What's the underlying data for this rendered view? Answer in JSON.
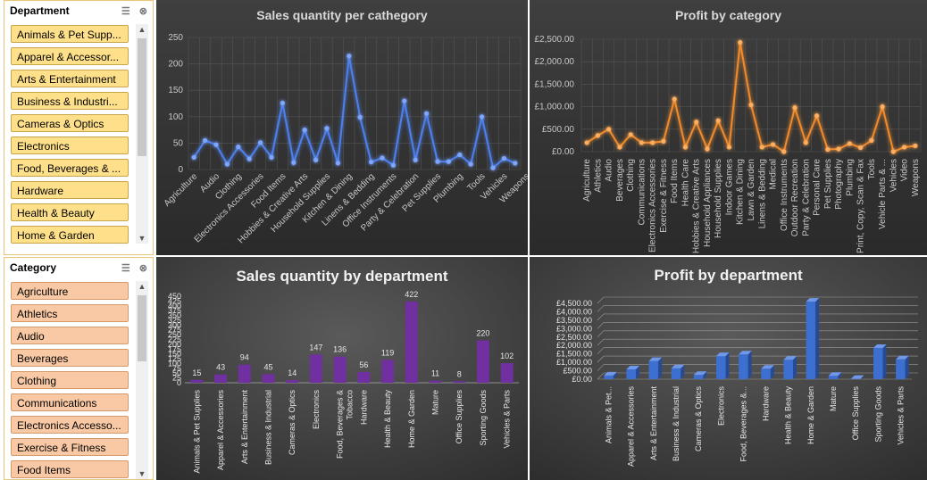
{
  "slicers": {
    "department": {
      "title": "Department",
      "items": [
        "Animals & Pet Supp...",
        "Apparel & Accessor...",
        "Arts & Entertainment",
        "Business & Industri...",
        "Cameras & Optics",
        "Electronics",
        "Food, Beverages & ...",
        "Hardware",
        "Health & Beauty",
        "Home & Garden"
      ]
    },
    "category": {
      "title": "Category",
      "items": [
        "Agriculture",
        "Athletics",
        "Audio",
        "Beverages",
        "Clothing",
        "Communications",
        "Electronics Accesso...",
        "Exercise & Fitness",
        "Food Items"
      ]
    }
  },
  "icons": {
    "multiselect": "multi-select-icon",
    "clear": "clear-filter-icon",
    "up": "scroll-up-icon",
    "down": "scroll-down-icon"
  },
  "colors": {
    "blue_series": "#4d80ee",
    "orange_series": "#f08a2a",
    "purple_bar": "#7030a0",
    "blue_bar": "#3d6fd0"
  },
  "chart_data": [
    {
      "type": "line",
      "title": "Sales quantity per cathegory",
      "ylim": [
        0,
        250
      ],
      "yticks": [
        0,
        50,
        100,
        150,
        200,
        250
      ],
      "tick_labels": [
        "Agriculture",
        "Audio",
        "Clothing",
        "Electronics Accessories",
        "Food Items",
        "Hobbies & Creative Arts",
        "Household Supplies",
        "Kitchen & Dining",
        "Linens & Bedding",
        "Office Instruments",
        "Party & Celebration",
        "Pet Supplies",
        "Plumbing",
        "Tools",
        "Vehicles",
        "Weapons"
      ],
      "values": [
        23,
        55,
        47,
        10,
        43,
        20,
        51,
        23,
        126,
        13,
        75,
        18,
        78,
        12,
        215,
        99,
        14,
        22,
        8,
        130,
        18,
        106,
        15,
        15,
        28,
        10,
        100,
        3,
        21,
        12
      ]
    },
    {
      "type": "line",
      "title": "Profit by category",
      "ylim": [
        0,
        2500
      ],
      "ytick_labels": [
        "£0.00",
        "£500.00",
        "£1,000.00",
        "£1,500.00",
        "£2,000.00",
        "£2,500.00"
      ],
      "categories": [
        "Agriculture",
        "Athletics",
        "Audio",
        "Beverages",
        "Clothing",
        "Communications",
        "Electronics Accessories",
        "Exercise & Fitness",
        "Food Items",
        "Health Care",
        "Hobbies & Creative Arts",
        "Household Appliances",
        "Household Supplies",
        "Indoor Games",
        "Kitchen & Dining",
        "Lawn & Garden",
        "Linens & Bedding",
        "Medical",
        "Office Instruments",
        "Outdoor Recreation",
        "Party & Celebration",
        "Personal Care",
        "Pet Supplies",
        "Photography",
        "Plumbing",
        "Print, Copy, Scan & Fax",
        "Tools",
        "Vehicle Parts & ...",
        "Vehicles",
        "Video",
        "Weapons"
      ],
      "values": [
        200,
        360,
        500,
        100,
        380,
        200,
        200,
        230,
        1170,
        100,
        660,
        60,
        690,
        100,
        2430,
        1040,
        100,
        160,
        0,
        980,
        200,
        800,
        50,
        60,
        180,
        90,
        250,
        1000,
        0,
        100,
        130
      ]
    },
    {
      "type": "bar",
      "title": "Sales quantity by department",
      "ylim": [
        0,
        450
      ],
      "yticks": [
        0,
        25,
        50,
        75,
        100,
        125,
        150,
        175,
        200,
        225,
        250,
        275,
        300,
        325,
        350,
        375,
        400,
        425,
        450
      ],
      "categories": [
        "Animals & Pet Supplies",
        "Apparel & Accessories",
        "Arts & Entertainment",
        "Business & Industrial",
        "Cameras & Optics",
        "Electronics",
        "Food, Beverages & Tobacco",
        "Hardware",
        "Health & Beauty",
        "Home & Garden",
        "Mature",
        "Office Supplies",
        "Sporting Goods",
        "Vehicles & Parts"
      ],
      "values": [
        15,
        43,
        94,
        45,
        14,
        147,
        136,
        56,
        119,
        422,
        11,
        8,
        220,
        102
      ],
      "data_labels": [
        "15",
        "43",
        "94",
        "45",
        "14",
        "147",
        "136",
        "56",
        "119",
        "422",
        "11",
        "8",
        "220",
        "102"
      ]
    },
    {
      "type": "bar",
      "title": "Profit by department",
      "ylim": [
        0,
        4500
      ],
      "ytick_labels": [
        "£0.00",
        "£500.00",
        "£1,000.00",
        "£1,500.00",
        "£2,000.00",
        "£2,500.00",
        "£3,000.00",
        "£3,500.00",
        "£4,000.00",
        "£4,500.00"
      ],
      "categories": [
        "Animals & Pet...",
        "Apparel & Accessories",
        "Arts & Entertainment",
        "Business & Industrial",
        "Cameras & Optics",
        "Electronics",
        "Food, Beverages &...",
        "Hardware",
        "Health & Beauty",
        "Home & Garden",
        "Mature",
        "Office Supplies",
        "Sporting Goods",
        "Vehicles & Parts"
      ],
      "values": [
        220,
        580,
        1080,
        640,
        250,
        1370,
        1470,
        620,
        1150,
        4600,
        200,
        20,
        1850,
        1180
      ]
    }
  ]
}
